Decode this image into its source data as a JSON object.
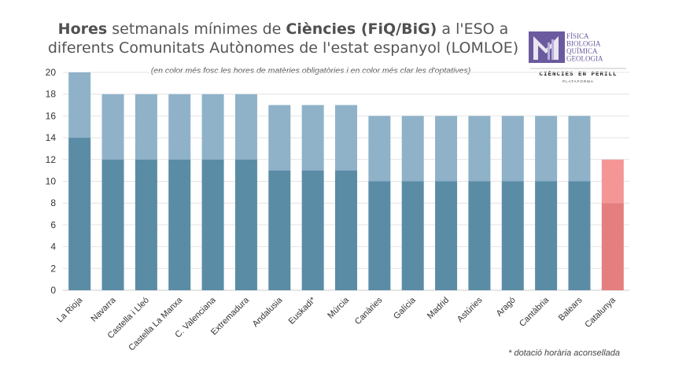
{
  "title": {
    "part1_bold": "Hores",
    "part2": " setmanals mínimes de ",
    "part3_bold": "Ciències (FiQ/BiG)",
    "part4": " a l'ESO a",
    "line2": "diferents Comunitats Autònomes de l'estat espanyol (LOMLOE)"
  },
  "subtitle": "(en color més fosc les hores de matèries obligatòries i en color més clar les d'optatives)",
  "footnote": "* dotació horària aconsellada",
  "logo": {
    "lines": [
      "FÍSICA",
      "BIOLOGIA",
      "QUÍMICA",
      "GEOLOGIA"
    ],
    "name": "CIÈNCIES EN PERILL",
    "sub": "PLATAFORMA"
  },
  "colors": {
    "dark": "#5a8ca6",
    "light": "#8fb2c9",
    "highlight_dark": "#e57e7e",
    "highlight_light": "#f59696",
    "grid": "#e4e4e4",
    "logo": "#6b5a9e"
  },
  "chart_data": {
    "type": "bar",
    "stacked": true,
    "categories": [
      "La Rioja",
      "Navarra",
      "Castella i Lleó",
      "Castella La Manxa",
      "C. Valenciana",
      "Extremadura",
      "Andalusia",
      "Euskadi*",
      "Múrcia",
      "Canàries",
      "Galícia",
      "Madrid",
      "Astúries",
      "Aragó",
      "Cantàbria",
      "Balears",
      "Catalunya"
    ],
    "series": [
      {
        "values": [
          14,
          12,
          12,
          12,
          12,
          12,
          11,
          11,
          11,
          10,
          10,
          10,
          10,
          10,
          10,
          10,
          8
        ]
      },
      {
        "values": [
          6,
          6,
          6,
          6,
          6,
          6,
          6,
          6,
          6,
          6,
          6,
          6,
          6,
          6,
          6,
          6,
          4
        ]
      }
    ],
    "highlight_category": "Catalunya",
    "ylim": [
      0,
      20
    ],
    "yticks": [
      0,
      2,
      4,
      6,
      8,
      10,
      12,
      14,
      16,
      18,
      20
    ],
    "grid": true
  }
}
